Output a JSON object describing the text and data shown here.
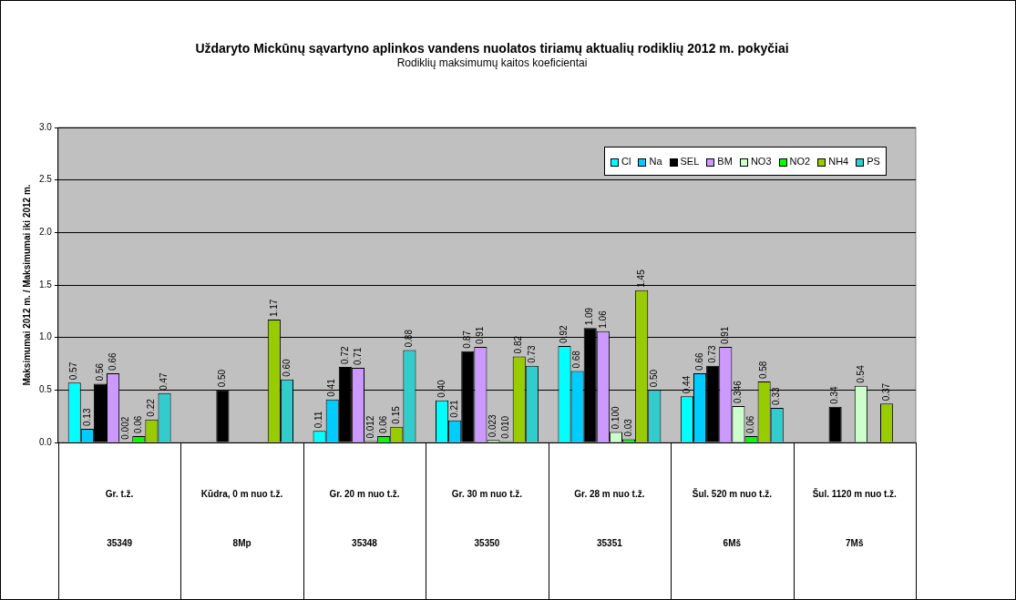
{
  "chart_data": {
    "type": "bar",
    "title": "Uždaryto Mickūnų sąvartyno aplinkos vandens nuolatos tiriamų aktualių rodiklių 2012 m. pokyčiai",
    "subtitle": "Rodiklių maksimumų kaitos koeficientai",
    "ylabel": "Maksimumai 2012 m. / Maksimumai iki 2012 m.",
    "categories": [
      "Gr. t.ž.\n35349",
      "Kūdra, 0 m nuo t.ž.\n8Mp",
      "Gr. 20 m nuo t.ž.\n35348",
      "Gr. 30 m nuo t.ž.\n35350",
      "Gr. 28 m nuo t.ž.\n35351",
      "Šul. 520 m nuo t.ž.\n6Mš",
      "Šul. 1120 m nuo t.ž.\n7Mš"
    ],
    "series": [
      {
        "name": "Cl",
        "color": "#00ffff",
        "values": [
          0.57,
          null,
          0.11,
          0.4,
          0.92,
          0.44,
          null
        ],
        "value_labels": [
          "0.57",
          null,
          "0.11",
          "0.40",
          "0.92",
          "0.44",
          null
        ]
      },
      {
        "name": "Na",
        "color": "#00ccff",
        "values": [
          0.13,
          null,
          0.41,
          0.21,
          0.68,
          0.66,
          null
        ],
        "value_labels": [
          "0.13",
          null,
          "0.41",
          "0.21",
          "0.68",
          "0.66",
          null
        ]
      },
      {
        "name": "SEL",
        "color": "#000000",
        "values": [
          0.56,
          0.5,
          0.72,
          0.87,
          1.09,
          0.73,
          0.34
        ],
        "value_labels": [
          "0.56",
          "0.50",
          "0.72",
          "0.87",
          "1.09",
          "0.73",
          "0.34"
        ]
      },
      {
        "name": "BM",
        "color": "#cc99ff",
        "values": [
          0.66,
          null,
          0.71,
          0.91,
          1.06,
          0.91,
          null
        ],
        "value_labels": [
          "0.66",
          null,
          "0.71",
          "0.91",
          "1.06",
          "0.91",
          null
        ]
      },
      {
        "name": "NO3",
        "color": "#ccffcc",
        "values": [
          0.002,
          null,
          0.012,
          0.023,
          0.1,
          0.346,
          0.54
        ],
        "value_labels": [
          "0.002",
          null,
          "0.012",
          "0.023",
          "0.100",
          "0.346",
          "0.54"
        ]
      },
      {
        "name": "NO2",
        "color": "#00ff00",
        "values": [
          0.06,
          null,
          0.06,
          0.01,
          0.03,
          0.06,
          null
        ],
        "value_labels": [
          "0.06",
          null,
          "0.06",
          "0.010",
          "0.03",
          "0.06",
          null
        ]
      },
      {
        "name": "NH4",
        "color": "#99cc00",
        "values": [
          0.22,
          1.17,
          0.15,
          0.82,
          1.45,
          0.58,
          0.37
        ],
        "value_labels": [
          "0.22",
          "1.17",
          "0.15",
          "0.82",
          "1.45",
          "0.58",
          "0.37"
        ]
      },
      {
        "name": "PS",
        "color": "#33cccc",
        "values": [
          0.47,
          0.6,
          0.88,
          0.73,
          0.5,
          0.33,
          null
        ],
        "value_labels": [
          "0.47",
          "0.60",
          "0.88",
          "0.73",
          "0.50",
          "0.33",
          null
        ]
      }
    ],
    "ylim": [
      0,
      3.0
    ],
    "yticks": [
      {
        "value": 0,
        "label": "0.0"
      },
      {
        "value": 0.5,
        "label": "0.5"
      },
      {
        "value": 1.0,
        "label": "1.0"
      },
      {
        "value": 1.5,
        "label": "1.5"
      },
      {
        "value": 2.0,
        "label": "2.0"
      },
      {
        "value": 2.5,
        "label": "2.5"
      },
      {
        "value": 3.0,
        "label": "3.0"
      }
    ],
    "grid": "y",
    "legend": "top right"
  }
}
